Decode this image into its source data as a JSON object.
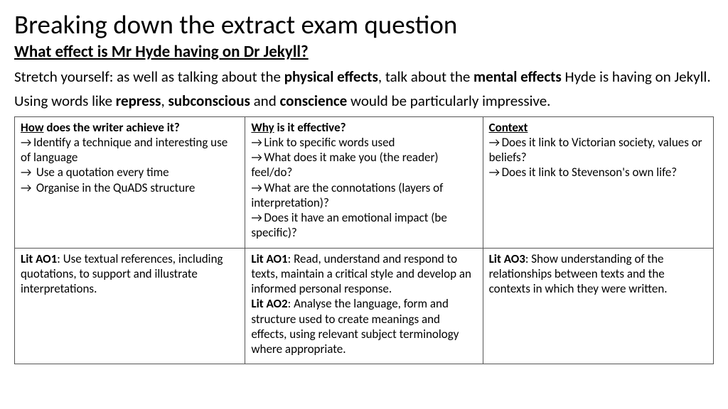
{
  "title": "Breaking down the extract exam question",
  "question": "What effect is Mr Hyde having on Dr Jekyll?",
  "p1_a": "Stretch yourself: as well as talking about the ",
  "p1_b": "physical effects",
  "p1_c": ", talk about the ",
  "p1_d": "mental effects",
  "p1_e": " Hyde is having on Jekyll.",
  "p2_a": "Using words like ",
  "p2_b": "repress",
  "p2_c": ", ",
  "p2_d": "subconscious",
  "p2_e": " and ",
  "p2_f": "conscience",
  "p2_g": " would be particularly impressive.",
  "r1c1_h": "How",
  "r1c1_h2": " does the writer achieve it?",
  "r1c1_l1": "Identify a technique and interesting use of language",
  "r1c1_l2": " Use a quotation every time",
  "r1c1_l3": " Organise in the QuADS structure",
  "r1c2_h": "Why",
  "r1c2_h2": " is it effective?",
  "r1c2_l1": "Link to specific words used",
  "r1c2_l2": "What does it make you (the reader) feel/do?",
  "r1c2_l3": "What are the connotations (layers of interpretation)?",
  "r1c2_l4": "Does it have an emotional impact (be specific)?",
  "r1c3_h": "Context",
  "r1c3_l1": "Does it link to Victorian society, values or beliefs?",
  "r1c3_l2": "Does it link to Stevenson's own life?",
  "r2c1_a": "Lit AO1",
  "r2c1_b": ": Use textual references, including quotations, to support and illustrate interpretations.",
  "r2c2_a": "Lit AO1",
  "r2c2_b": ": Read, understand and respond to texts, maintain a critical style and develop an informed personal response.",
  "r2c2_c": "Lit AO2",
  "r2c2_d": ": Analyse the language, form and structure used to create meanings and effects, using relevant subject terminology where appropriate.",
  "r2c3_a": "Lit AO3",
  "r2c3_b": ": Show understanding of the relationships between texts and the contexts in which they were written.",
  "arrow": "→"
}
